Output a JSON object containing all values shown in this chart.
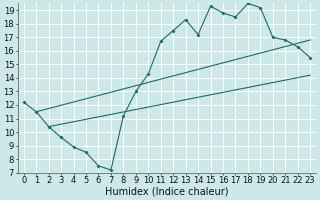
{
  "xlabel": "Humidex (Indice chaleur)",
  "bg_color": "#cde8e8",
  "grid_color": "#ffffff",
  "line_color": "#1a6b6b",
  "xlim": [
    -0.5,
    23.5
  ],
  "ylim": [
    7,
    19.5
  ],
  "xticks": [
    0,
    1,
    2,
    3,
    4,
    5,
    6,
    7,
    8,
    9,
    10,
    11,
    12,
    13,
    14,
    15,
    16,
    17,
    18,
    19,
    20,
    21,
    22,
    23
  ],
  "yticks": [
    7,
    8,
    9,
    10,
    11,
    12,
    13,
    14,
    15,
    16,
    17,
    18,
    19
  ],
  "line1_x": [
    0,
    1,
    2,
    3,
    4,
    5,
    6,
    7,
    8,
    9,
    10,
    11,
    12,
    13,
    14,
    15,
    16,
    17,
    18,
    19,
    20,
    21,
    22,
    23
  ],
  "line1_y": [
    12.2,
    11.5,
    10.4,
    9.6,
    8.9,
    8.5,
    7.5,
    7.2,
    11.2,
    13.0,
    14.3,
    16.7,
    17.5,
    18.3,
    17.2,
    19.3,
    18.8,
    18.5,
    19.5,
    19.2,
    17.0,
    16.8,
    16.3,
    15.5
  ],
  "line2_x": [
    1,
    23
  ],
  "line2_y": [
    11.5,
    16.8
  ],
  "line3_x": [
    2,
    23
  ],
  "line3_y": [
    10.4,
    14.2
  ],
  "xlabel_fontsize": 7,
  "tick_fontsize": 6
}
